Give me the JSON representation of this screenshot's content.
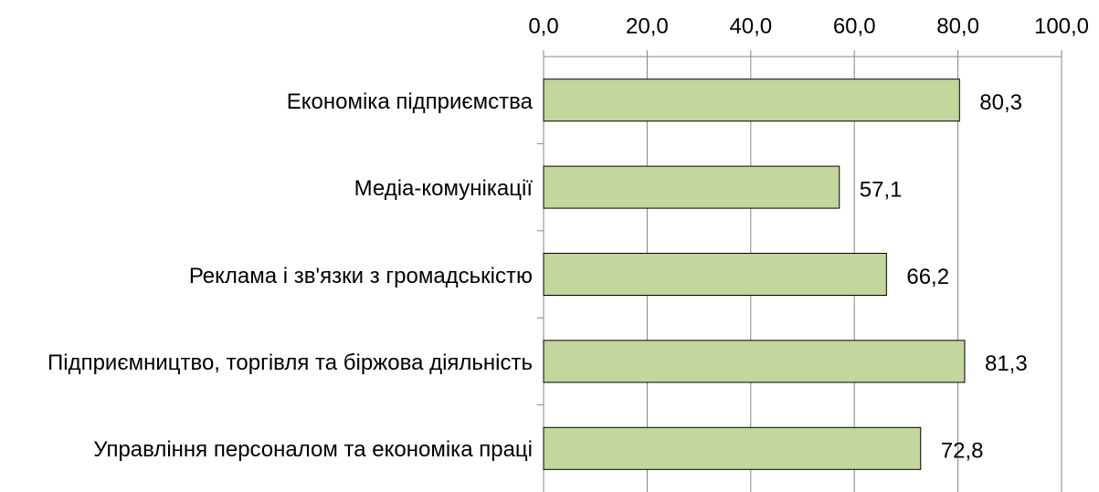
{
  "chart_data": {
    "type": "hbar",
    "categories": [
      "Економіка підприємства",
      "Медіа-комунікації",
      "Реклама і зв'язки з громадськістю",
      "Підприємництво, торгівля та біржова діяльність",
      "Управління персоналом та економіка праці"
    ],
    "values": [
      80.3,
      57.1,
      66.2,
      81.3,
      72.8
    ],
    "value_labels": [
      "80,3",
      "57,1",
      "66,2",
      "81,3",
      "72,8"
    ],
    "color": "#c3d69b",
    "xlim": [
      0,
      100
    ],
    "xticks": [
      {
        "value": 0,
        "label": "0,0"
      },
      {
        "value": 20,
        "label": "20,0"
      },
      {
        "value": 40,
        "label": "40,0"
      },
      {
        "value": 60,
        "label": "60,0"
      },
      {
        "value": 80,
        "label": "80,0"
      },
      {
        "value": 100,
        "label": "100,0"
      }
    ],
    "grid": true
  }
}
